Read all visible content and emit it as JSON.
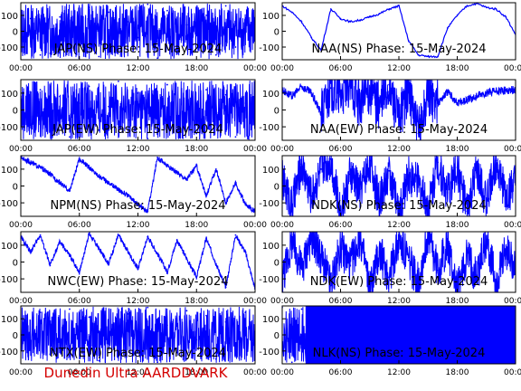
{
  "footer": {
    "text": "Dunedin Ultra AARDDVARK",
    "color": "#d40000"
  },
  "colors": {
    "trace": "#0000ff",
    "frame": "#000000",
    "text": "#000000"
  },
  "chart_data": [
    {
      "type": "line",
      "title": "JAP(NS) Phase: 15-May-2024",
      "ylim": [
        -180,
        180
      ],
      "yticks": [
        100,
        0,
        -100
      ],
      "xticks": [
        "00:00",
        "06:00",
        "12:00",
        "18:00",
        "00:00"
      ],
      "xlim_hours": [
        0,
        24
      ],
      "style": "noisy-dense",
      "x_hours": [
        0,
        1,
        2,
        3,
        4,
        5,
        6,
        7,
        8,
        9,
        10,
        11,
        12,
        13,
        14,
        15,
        16,
        17,
        18,
        19,
        20,
        21,
        22,
        23,
        24
      ],
      "phase_deg": [
        -60,
        80,
        -150,
        -140,
        90,
        20,
        0,
        150,
        -160,
        120,
        -120,
        60,
        -40,
        170,
        -170,
        130,
        -110,
        40,
        -20,
        100,
        -150,
        160,
        -100,
        80,
        0
      ]
    },
    {
      "type": "line",
      "title": "NAA(NS) Phase: 15-May-2024",
      "ylim": [
        -180,
        180
      ],
      "yticks": [
        100,
        0,
        -100
      ],
      "xticks": [
        "00:00",
        "06:00",
        "12:00",
        "18:00",
        "00:00"
      ],
      "xlim_hours": [
        0,
        24
      ],
      "style": "smooth",
      "x_hours": [
        0,
        1,
        2,
        3,
        4,
        5,
        6,
        7,
        8,
        9,
        10,
        11,
        12,
        13,
        14,
        15,
        16,
        17,
        18,
        19,
        20,
        21,
        22,
        23,
        24
      ],
      "phase_deg": [
        160,
        120,
        60,
        -40,
        -120,
        140,
        80,
        60,
        70,
        90,
        110,
        140,
        160,
        -60,
        -150,
        -160,
        -160,
        20,
        100,
        160,
        175,
        150,
        140,
        90,
        -20
      ]
    },
    {
      "type": "line",
      "title": "JAP(EW) Phase: 15-May-2024",
      "ylim": [
        -180,
        180
      ],
      "yticks": [
        100,
        0,
        -100
      ],
      "xticks": [
        "00:00",
        "06:00",
        "12:00",
        "18:00",
        "00:00"
      ],
      "xlim_hours": [
        0,
        24
      ],
      "style": "noisy-dense",
      "x_hours": [
        0,
        1,
        2,
        3,
        4,
        5,
        6,
        7,
        8,
        9,
        10,
        11,
        12,
        13,
        14,
        15,
        16,
        17,
        18,
        19,
        20,
        21,
        22,
        23,
        24
      ],
      "phase_deg": [
        60,
        -40,
        120,
        -100,
        80,
        -160,
        40,
        140,
        -120,
        20,
        170,
        -60,
        100,
        -170,
        10,
        150,
        -90,
        60,
        -140,
        120,
        -20,
        90,
        -160,
        40,
        0
      ]
    },
    {
      "type": "line",
      "title": "NAA(EW) Phase: 15-May-2024",
      "ylim": [
        -180,
        180
      ],
      "yticks": [
        100,
        0,
        -100
      ],
      "xticks": [
        "00:00",
        "06:00",
        "12:00",
        "18:00",
        "00:00"
      ],
      "xlim_hours": [
        0,
        24
      ],
      "style": "mixed",
      "x_hours": [
        0,
        1,
        2,
        3,
        4,
        5,
        6,
        7,
        8,
        9,
        10,
        11,
        12,
        13,
        14,
        15,
        16,
        17,
        18,
        19,
        20,
        21,
        22,
        23,
        24
      ],
      "phase_deg": [
        120,
        80,
        140,
        100,
        -20,
        130,
        90,
        160,
        40,
        120,
        20,
        150,
        -60,
        130,
        -140,
        100,
        40,
        110,
        40,
        60,
        80,
        100,
        110,
        115,
        120
      ]
    },
    {
      "type": "line",
      "title": "NPM(NS) Phase: 15-May-2024",
      "ylim": [
        -180,
        180
      ],
      "yticks": [
        100,
        0,
        -100
      ],
      "xticks": [
        "00:00",
        "06:00",
        "12:00",
        "18:00",
        "00:00"
      ],
      "xlim_hours": [
        0,
        24
      ],
      "style": "sawtooth",
      "x_hours": [
        0,
        1,
        2,
        3,
        4,
        5,
        6,
        7,
        8,
        9,
        10,
        11,
        12,
        13,
        14,
        15,
        16,
        17,
        18,
        19,
        20,
        21,
        22,
        23,
        24
      ],
      "phase_deg": [
        170,
        140,
        110,
        70,
        20,
        -30,
        160,
        110,
        60,
        20,
        -20,
        -60,
        -110,
        -150,
        170,
        120,
        80,
        40,
        120,
        -60,
        100,
        -100,
        20,
        -110,
        -150
      ]
    },
    {
      "type": "line",
      "title": "NDK(NS) Phase: 15-May-2024",
      "ylim": [
        -180,
        180
      ],
      "yticks": [
        100,
        0,
        -100
      ],
      "xticks": [
        "00:00",
        "06:00",
        "12:00",
        "18:00",
        "00:00"
      ],
      "xlim_hours": [
        0,
        24
      ],
      "style": "noisy",
      "x_hours": [
        0,
        1,
        2,
        3,
        4,
        5,
        6,
        7,
        8,
        9,
        10,
        11,
        12,
        13,
        14,
        15,
        16,
        17,
        18,
        19,
        20,
        21,
        22,
        23,
        24
      ],
      "phase_deg": [
        40,
        -120,
        130,
        -60,
        100,
        160,
        -160,
        70,
        -20,
        150,
        -100,
        90,
        -170,
        60,
        20,
        -130,
        140,
        -40,
        110,
        -150,
        80,
        -90,
        150,
        -60,
        20
      ]
    },
    {
      "type": "line",
      "title": "NWC(EW) Phase: 15-May-2024",
      "ylim": [
        -180,
        180
      ],
      "yticks": [
        100,
        0,
        -100
      ],
      "xticks": [
        "00:00",
        "06:00",
        "12:00",
        "18:00",
        "00:00"
      ],
      "xlim_hours": [
        0,
        24
      ],
      "style": "sawtooth",
      "x_hours": [
        0,
        1,
        2,
        3,
        4,
        5,
        6,
        7,
        8,
        9,
        10,
        11,
        12,
        13,
        14,
        15,
        16,
        17,
        18,
        19,
        20,
        21,
        22,
        23,
        24
      ],
      "phase_deg": [
        150,
        60,
        160,
        -20,
        120,
        40,
        -60,
        170,
        80,
        -10,
        160,
        60,
        -40,
        150,
        50,
        -60,
        130,
        20,
        -90,
        140,
        -10,
        -150,
        160,
        60,
        -160
      ]
    },
    {
      "type": "line",
      "title": "NDK(EW) Phase: 15-May-2024",
      "ylim": [
        -180,
        180
      ],
      "yticks": [
        100,
        0,
        -100
      ],
      "xticks": [
        "00:00",
        "06:00",
        "12:00",
        "18:00",
        "00:00"
      ],
      "xlim_hours": [
        0,
        24
      ],
      "style": "noisy",
      "x_hours": [
        0,
        1,
        2,
        3,
        4,
        5,
        6,
        7,
        8,
        9,
        10,
        11,
        12,
        13,
        14,
        15,
        16,
        17,
        18,
        19,
        20,
        21,
        22,
        23,
        24
      ],
      "phase_deg": [
        -100,
        120,
        -40,
        160,
        30,
        -140,
        90,
        -20,
        150,
        -160,
        60,
        -90,
        130,
        10,
        -120,
        170,
        -50,
        100,
        -170,
        40,
        -80,
        140,
        -130,
        60,
        -10
      ]
    },
    {
      "type": "line",
      "title": "NTX(EW) Phase: 15-May-2024",
      "ylim": [
        -180,
        180
      ],
      "yticks": [
        100,
        0,
        -100
      ],
      "xticks": [
        "00:00",
        "06:00",
        "12:00",
        "18:00",
        "00:00"
      ],
      "xlim_hours": [
        0,
        24
      ],
      "style": "noisy-dense",
      "x_hours": [
        0,
        1,
        2,
        3,
        4,
        5,
        6,
        7,
        8,
        9,
        10,
        11,
        12,
        13,
        14,
        15,
        16,
        17,
        18,
        19,
        20,
        21,
        22,
        23,
        24
      ],
      "phase_deg": [
        100,
        -60,
        140,
        -120,
        40,
        160,
        -20,
        110,
        -160,
        70,
        -90,
        130,
        -40,
        170,
        -170,
        60,
        -110,
        150,
        -30,
        120,
        -150,
        80,
        -70,
        140,
        0
      ]
    },
    {
      "type": "line",
      "title": "NLK(NS) Phase: 15-May-2024",
      "ylim": [
        -180,
        180
      ],
      "yticks": [
        100,
        0,
        -100
      ],
      "xticks": [
        "00:00",
        "06:00",
        "12:00",
        "18:00",
        "00:00"
      ],
      "xlim_hours": [
        0,
        24
      ],
      "style": "solid",
      "x_hours": [
        0,
        1,
        2,
        3,
        4,
        5,
        6,
        7,
        8,
        9,
        10,
        11,
        12,
        13,
        14,
        15,
        16,
        17,
        18,
        19,
        20,
        21,
        22,
        23,
        24
      ],
      "phase_deg": [
        170,
        -170,
        160,
        -160,
        170,
        -170,
        160,
        -160,
        170,
        -170,
        160,
        -160,
        170,
        -170,
        160,
        -160,
        170,
        -170,
        160,
        -160,
        170,
        -170,
        160,
        -160,
        170
      ]
    }
  ]
}
